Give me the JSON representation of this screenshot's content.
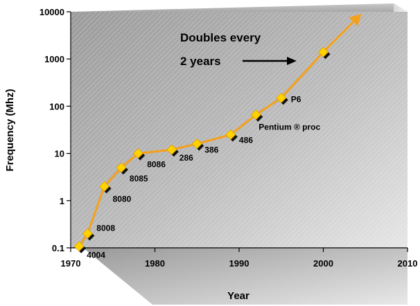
{
  "chart_data": {
    "type": "line",
    "xlabel": "Year",
    "ylabel": "Frequency (Mhz)",
    "xlim": [
      1970,
      2010
    ],
    "ylim": [
      0.1,
      10000
    ],
    "y_scale": "log",
    "x_ticks": [
      "1970",
      "1980",
      "1990",
      "2000",
      "2010"
    ],
    "y_ticks": [
      "0.1",
      "1",
      "10",
      "100",
      "1000",
      "10000"
    ],
    "grid": false,
    "series": [
      {
        "color": "#f5a01a",
        "marker_color": "#ffd200",
        "points": [
          {
            "x": 1971,
            "y": 0.108,
            "label": "4004"
          },
          {
            "x": 1972,
            "y": 0.2,
            "label": "8008"
          },
          {
            "x": 1974,
            "y": 2,
            "label": "8080"
          },
          {
            "x": 1976,
            "y": 5,
            "label": "8085"
          },
          {
            "x": 1978,
            "y": 10,
            "label": "8086"
          },
          {
            "x": 1982,
            "y": 12,
            "label": "286"
          },
          {
            "x": 1985,
            "y": 16,
            "label": "386"
          },
          {
            "x": 1989,
            "y": 25,
            "label": "486"
          },
          {
            "x": 1992,
            "y": 66,
            "label": "Pentium ® proc"
          },
          {
            "x": 1995,
            "y": 150,
            "label": "P6"
          },
          {
            "x": 2000,
            "y": 1400,
            "label": ""
          }
        ],
        "arrow_to": {
          "x": 2004.5,
          "y": 9000
        }
      }
    ],
    "annotations": {
      "line1": "Doubles every",
      "line2": "2  years"
    }
  }
}
